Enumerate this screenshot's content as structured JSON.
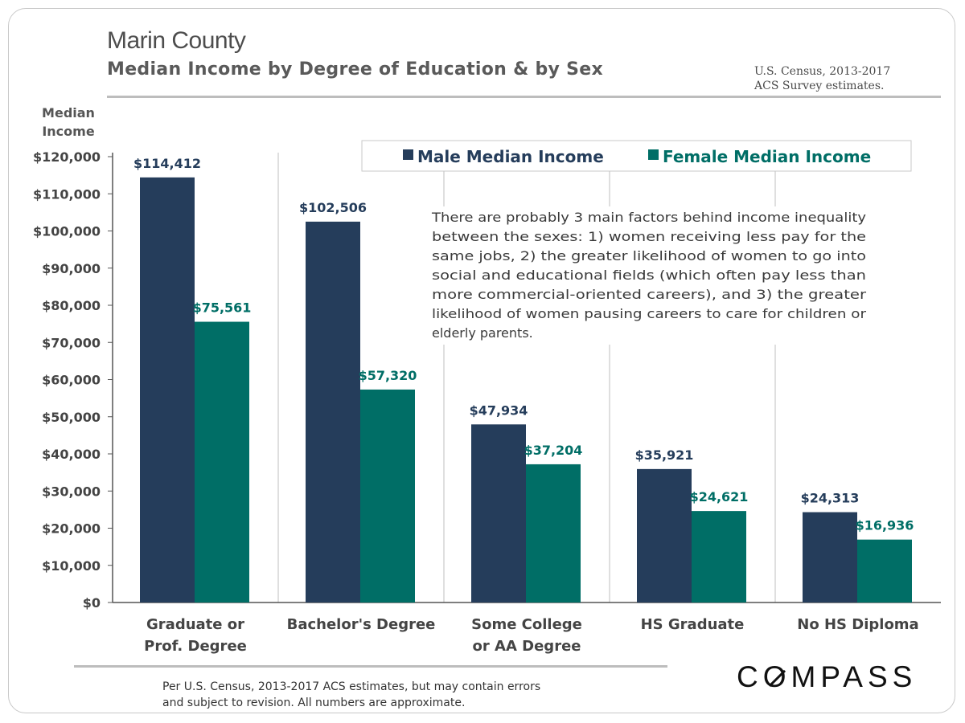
{
  "header": {
    "title": "Marin County",
    "subtitle": "Median Income by Degree of Education & by Sex",
    "source_line1": "U.S. Census, 2013-2017",
    "source_line2": "ACS Survey estimates."
  },
  "footer": {
    "note_line1": "Per U.S. Census, 2013-2017 ACS estimates, but may contain errors",
    "note_line2": "and subject to revision. All numbers are approximate.",
    "logo_pre": "C",
    "logo_o": "O",
    "logo_post": "MPASS"
  },
  "colors": {
    "male": "#253d5b",
    "female": "#006e66",
    "axis": "#555555",
    "divider": "#bfbfbf"
  },
  "chart_data": {
    "type": "bar",
    "ylabel_line1": "Median",
    "ylabel_line2": "Income",
    "ylim": [
      0,
      120000
    ],
    "yticks": [
      "$0",
      "$10,000",
      "$20,000",
      "$30,000",
      "$40,000",
      "$50,000",
      "$60,000",
      "$70,000",
      "$80,000",
      "$90,000",
      "$100,000",
      "$110,000",
      "$120,000"
    ],
    "categories": [
      [
        "Graduate or",
        "Prof. Degree"
      ],
      [
        "Bachelor's Degree"
      ],
      [
        "Some College",
        "or AA Degree"
      ],
      [
        "HS Graduate"
      ],
      [
        "No HS Diploma"
      ]
    ],
    "series": [
      {
        "name": "Male Median Income",
        "values": [
          114412,
          102506,
          47934,
          35921,
          24313
        ],
        "labels": [
          "$114,412",
          "$102,506",
          "$47,934",
          "$35,921",
          "$24,313"
        ]
      },
      {
        "name": "Female Median Income",
        "values": [
          75561,
          57320,
          37204,
          24621,
          16936
        ],
        "labels": [
          "$75,561",
          "$57,320",
          "$37,204",
          "$24,621",
          "$16,936"
        ]
      }
    ],
    "legend_position": "top-right",
    "annotation": [
      "There are probably 3 main factors behind income inequality",
      "between the sexes: 1) women receiving less pay for the",
      "same jobs, 2) the greater likelihood of women to go into",
      "social and educational fields (which often pay less than",
      "more commercial-oriented careers), and 3) the greater",
      "likelihood of women pausing careers to care for children or",
      "elderly parents."
    ]
  }
}
